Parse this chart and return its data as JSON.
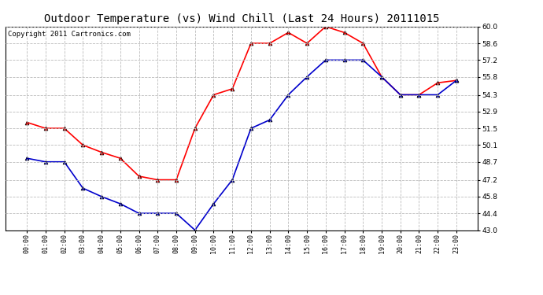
{
  "title": "Outdoor Temperature (vs) Wind Chill (Last 24 Hours) 20111015",
  "copyright": "Copyright 2011 Cartronics.com",
  "x_labels": [
    "00:00",
    "01:00",
    "02:00",
    "03:00",
    "04:00",
    "05:00",
    "06:00",
    "07:00",
    "08:00",
    "09:00",
    "10:00",
    "11:00",
    "12:00",
    "13:00",
    "14:00",
    "15:00",
    "16:00",
    "17:00",
    "18:00",
    "19:00",
    "20:00",
    "21:00",
    "22:00",
    "23:00"
  ],
  "temp_red": [
    52.0,
    51.5,
    51.5,
    50.1,
    49.5,
    49.0,
    47.5,
    47.2,
    47.2,
    51.5,
    54.3,
    54.8,
    58.6,
    58.6,
    59.5,
    58.6,
    60.0,
    59.5,
    58.6,
    55.8,
    54.3,
    54.3,
    55.3,
    55.5
  ],
  "temp_blue": [
    49.0,
    48.7,
    48.7,
    46.5,
    45.8,
    45.2,
    44.4,
    44.4,
    44.4,
    43.0,
    45.2,
    47.2,
    51.5,
    52.2,
    54.3,
    55.8,
    57.2,
    57.2,
    57.2,
    55.8,
    54.3,
    54.3,
    54.3,
    55.5
  ],
  "ymin": 43.0,
  "ymax": 60.0,
  "yticks": [
    43.0,
    44.4,
    45.8,
    47.2,
    48.7,
    50.1,
    51.5,
    52.9,
    54.3,
    55.8,
    57.2,
    58.6,
    60.0
  ],
  "red_color": "#ff0000",
  "blue_color": "#0000cc",
  "marker_color": "#000000",
  "bg_color": "#ffffff",
  "plot_bg": "#ffffff",
  "grid_color": "#bbbbbb",
  "title_fontsize": 10,
  "copyright_fontsize": 6.5
}
